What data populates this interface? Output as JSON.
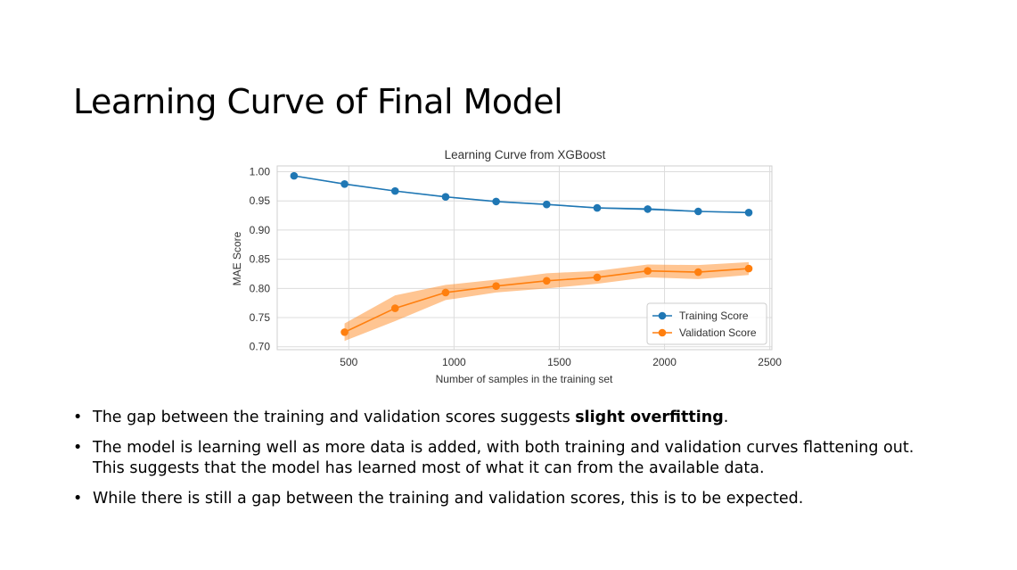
{
  "slide": {
    "title": "Learning Curve of Final Model"
  },
  "bullets": [
    {
      "pre": "The gap between the training and validation scores suggests ",
      "bold": "slight overfitting",
      "post": "."
    },
    {
      "pre": "The model is learning well as more data is added, with both training and validation curves flattening out.",
      "line2": "This suggests that the model has learned most of what it can from the available data."
    },
    {
      "pre": "While there is still a gap between the training and validation scores, this is to be expected."
    }
  ],
  "chart_data": {
    "type": "line",
    "title": "Learning Curve from XGBoost",
    "xlabel": "Number of samples in the training set",
    "ylabel": "MAE Score",
    "xlim": [
      160,
      2510
    ],
    "ylim": [
      0.695,
      1.01
    ],
    "xticks": [
      500,
      1000,
      1500,
      2000,
      2500
    ],
    "yticks": [
      0.7,
      0.75,
      0.8,
      0.85,
      0.9,
      0.95,
      1.0
    ],
    "xtick_labels": [
      "500",
      "1000",
      "1500",
      "2000",
      "2500"
    ],
    "ytick_labels": [
      "0.70",
      "0.75",
      "0.80",
      "0.85",
      "0.90",
      "0.95",
      "1.00"
    ],
    "grid": true,
    "legend_position": "lower-right",
    "series": [
      {
        "name": "Training Score",
        "color": "#1f77b4",
        "x": [
          240,
          480,
          720,
          960,
          1200,
          1440,
          1680,
          1920,
          2160,
          2400
        ],
        "values": [
          0.993,
          0.979,
          0.967,
          0.957,
          0.949,
          0.944,
          0.938,
          0.936,
          0.932,
          0.93
        ],
        "std": [
          0.001,
          0.001,
          0.001,
          0.001,
          0.001,
          0.001,
          0.001,
          0.002,
          0.001,
          0.001
        ]
      },
      {
        "name": "Validation Score",
        "color": "#ff7f0e",
        "x": [
          480,
          720,
          960,
          1200,
          1440,
          1680,
          1920,
          2160,
          2400
        ],
        "values": [
          0.725,
          0.766,
          0.793,
          0.804,
          0.813,
          0.819,
          0.83,
          0.828,
          0.834
        ],
        "std": [
          0.015,
          0.022,
          0.013,
          0.011,
          0.013,
          0.011,
          0.011,
          0.012,
          0.011
        ]
      }
    ]
  }
}
